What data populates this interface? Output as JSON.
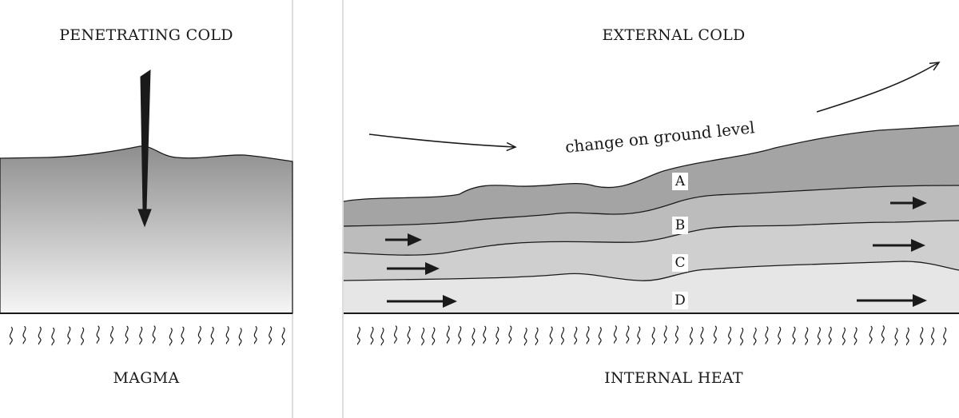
{
  "left_panel": {
    "top_title": "PENETRATING COLD",
    "bottom_title": "MAGMA"
  },
  "right_panel": {
    "top_title": "EXTERNAL COLD",
    "bottom_title": "INTERNAL HEAT",
    "ground_label": "change on ground level",
    "layers": [
      {
        "label": "A",
        "shade": "#a4a4a4"
      },
      {
        "label": "B",
        "shade": "#bcbcbc"
      },
      {
        "label": "C",
        "shade": "#cfcfcf"
      },
      {
        "label": "D",
        "shade": "#e6e6e6"
      }
    ]
  },
  "colors": {
    "ink": "#1a1a1a",
    "divider": "#bbbbbb",
    "gradient_top": "#8e8e8e",
    "gradient_bottom": "#f6f6f6"
  }
}
